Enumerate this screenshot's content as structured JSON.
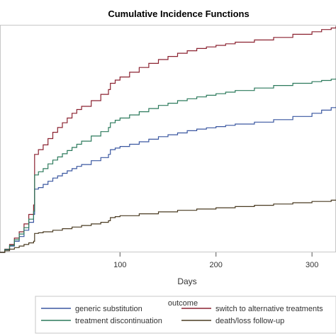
{
  "chart_data": {
    "type": "line",
    "title": "Cumulative Incidence Functions",
    "xlabel": "Days",
    "ylabel": "",
    "xlim": [
      -25,
      325
    ],
    "ylim": [
      0,
      0.72
    ],
    "x_ticks": [
      100,
      200,
      300
    ],
    "x_tick_labels": [
      "100",
      "200",
      "300"
    ],
    "step": true,
    "legend": {
      "title": "outcome",
      "placement": "bottom",
      "columns": 2
    },
    "series": [
      {
        "name": "generic substitution",
        "color": "#3a57a0",
        "x": [
          -25,
          -20,
          -15,
          -10,
          -5,
          0,
          5,
          10,
          11,
          15,
          20,
          25,
          30,
          35,
          40,
          45,
          50,
          55,
          60,
          70,
          80,
          88,
          90,
          95,
          100,
          110,
          120,
          130,
          140,
          150,
          160,
          170,
          180,
          190,
          200,
          210,
          220,
          240,
          260,
          280,
          300,
          310,
          320,
          325
        ],
        "y": [
          0,
          0.008,
          0.02,
          0.035,
          0.05,
          0.07,
          0.095,
          0.12,
          0.2,
          0.205,
          0.215,
          0.225,
          0.235,
          0.242,
          0.25,
          0.258,
          0.265,
          0.272,
          0.278,
          0.29,
          0.3,
          0.31,
          0.325,
          0.33,
          0.335,
          0.342,
          0.35,
          0.358,
          0.366,
          0.372,
          0.378,
          0.385,
          0.39,
          0.394,
          0.398,
          0.402,
          0.406,
          0.412,
          0.42,
          0.43,
          0.44,
          0.45,
          0.458,
          0.46
        ]
      },
      {
        "name": "switch to alternative treatments",
        "color": "#8b2230",
        "x": [
          -25,
          -20,
          -15,
          -10,
          -5,
          0,
          5,
          10,
          11,
          15,
          20,
          25,
          30,
          35,
          40,
          45,
          50,
          55,
          60,
          70,
          80,
          88,
          90,
          95,
          100,
          110,
          120,
          130,
          140,
          150,
          160,
          170,
          180,
          190,
          200,
          210,
          220,
          240,
          260,
          280,
          300,
          310,
          320,
          325
        ],
        "y": [
          0,
          0.01,
          0.025,
          0.045,
          0.065,
          0.09,
          0.12,
          0.15,
          0.31,
          0.325,
          0.34,
          0.36,
          0.38,
          0.395,
          0.41,
          0.425,
          0.44,
          0.452,
          0.462,
          0.48,
          0.5,
          0.515,
          0.535,
          0.545,
          0.555,
          0.57,
          0.585,
          0.598,
          0.61,
          0.62,
          0.63,
          0.638,
          0.645,
          0.65,
          0.655,
          0.66,
          0.665,
          0.672,
          0.68,
          0.69,
          0.698,
          0.705,
          0.71,
          0.715
        ]
      },
      {
        "name": "treatment discontinuation",
        "color": "#2c7a5c",
        "x": [
          -25,
          -20,
          -15,
          -10,
          -5,
          0,
          5,
          10,
          11,
          15,
          20,
          25,
          30,
          35,
          40,
          45,
          50,
          55,
          60,
          70,
          80,
          88,
          90,
          95,
          100,
          110,
          120,
          130,
          140,
          150,
          160,
          170,
          180,
          190,
          200,
          210,
          220,
          240,
          260,
          280,
          300,
          310,
          320,
          325
        ],
        "y": [
          0,
          0.009,
          0.022,
          0.04,
          0.058,
          0.078,
          0.105,
          0.13,
          0.245,
          0.255,
          0.265,
          0.28,
          0.292,
          0.302,
          0.312,
          0.322,
          0.332,
          0.342,
          0.352,
          0.368,
          0.382,
          0.395,
          0.41,
          0.418,
          0.425,
          0.435,
          0.445,
          0.455,
          0.465,
          0.472,
          0.48,
          0.486,
          0.492,
          0.497,
          0.502,
          0.507,
          0.512,
          0.52,
          0.528,
          0.535,
          0.54,
          0.544,
          0.548,
          0.55
        ]
      },
      {
        "name": "death/loss follow-up",
        "color": "#4a3b22",
        "x": [
          -25,
          -20,
          -15,
          -10,
          -5,
          0,
          5,
          10,
          11,
          15,
          20,
          30,
          40,
          50,
          60,
          70,
          80,
          88,
          90,
          95,
          100,
          120,
          140,
          160,
          180,
          200,
          220,
          240,
          260,
          280,
          300,
          320,
          325
        ],
        "y": [
          0,
          0.005,
          0.01,
          0.015,
          0.02,
          0.025,
          0.03,
          0.035,
          0.06,
          0.062,
          0.065,
          0.07,
          0.075,
          0.08,
          0.085,
          0.09,
          0.095,
          0.1,
          0.11,
          0.113,
          0.116,
          0.122,
          0.128,
          0.133,
          0.137,
          0.141,
          0.145,
          0.149,
          0.153,
          0.157,
          0.161,
          0.165,
          0.166
        ]
      }
    ]
  }
}
